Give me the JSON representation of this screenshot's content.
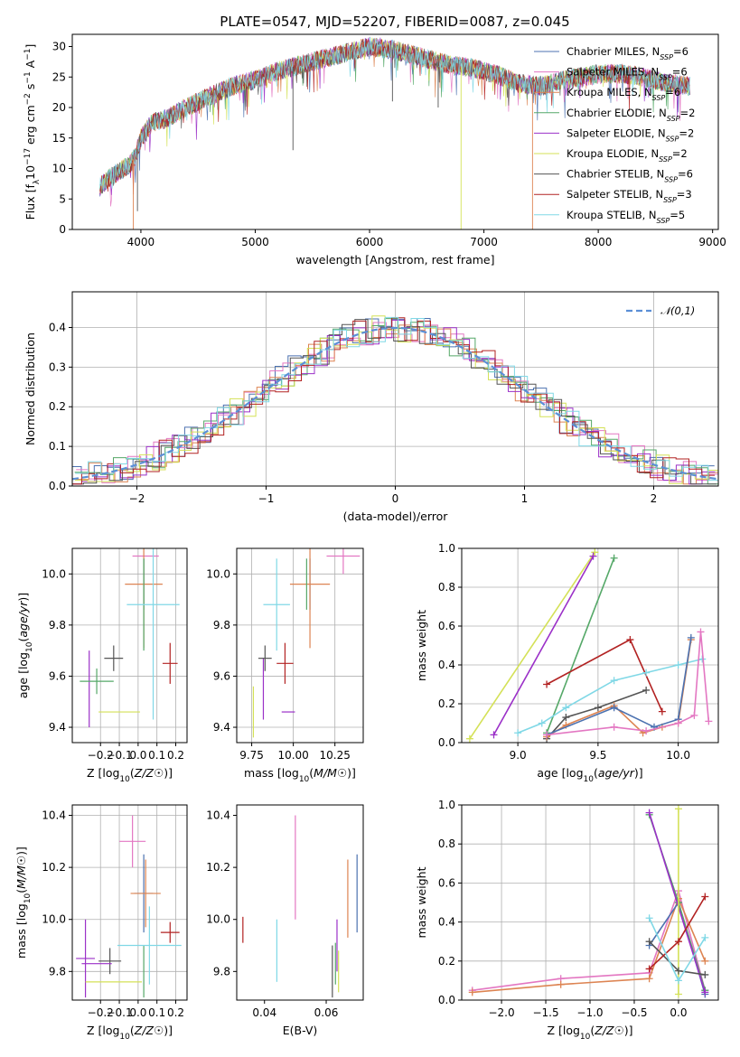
{
  "figure": {
    "title": "PLATE=0547, MJD=52207, FIBERID=0087, z=0.045"
  },
  "series_names": [
    "Chabrier MILES, N_SSP=6",
    "Salpeter MILES, N_SSP=6",
    "Kroupa MILES, N_SSP=6",
    "Chabrier ELODIE, N_SSP=2",
    "Salpeter ELODIE, N_SSP=2",
    "Kroupa ELODIE, N_SSP=2",
    "Chabrier STELIB, N_SSP=6",
    "Salpeter STELIB, N_SSP=3",
    "Kroupa STELIB, N_SSP=5"
  ],
  "colors": [
    "#4c72b0",
    "#e377c2",
    "#dd8452",
    "#55a868",
    "#9b30c8",
    "#d4e157",
    "#555555",
    "#b22222",
    "#80d8e6"
  ],
  "chart_data": [
    {
      "id": "spectrum",
      "type": "line",
      "xlabel": "wavelength [Angstrom, rest frame]",
      "ylabel": "Flux [f_λ 10^-17 erg cm^-2 s^-1 A^-1]",
      "xlim": [
        3400,
        9050
      ],
      "ylim": [
        0,
        32
      ],
      "xticks": [
        4000,
        5000,
        6000,
        7000,
        8000,
        9000
      ],
      "yticks": [
        0,
        5,
        10,
        15,
        20,
        25,
        30
      ],
      "grid": false,
      "legend": "top-right",
      "continuum": {
        "x": [
          3640,
          3700,
          3800,
          3900,
          3950,
          4000,
          4100,
          4200,
          4300,
          4500,
          4800,
          5000,
          5200,
          5500,
          5800,
          6000,
          6200,
          6500,
          6700,
          6900,
          7100,
          7300,
          7500,
          7700,
          8000,
          8200,
          8400,
          8600,
          8800
        ],
        "y": [
          7,
          8,
          9.5,
          10.5,
          12,
          15,
          17.5,
          18,
          19,
          21,
          23.5,
          24.5,
          26,
          27.5,
          29,
          30,
          29.5,
          28,
          27,
          26.5,
          25.5,
          24,
          23.5,
          24.5,
          25.5,
          25.5,
          25,
          24,
          23.5
        ]
      },
      "dips": [
        {
          "x": 3934,
          "y": 0
        },
        {
          "x": 3970,
          "y": 3
        },
        {
          "x": 5330,
          "y": 13
        },
        {
          "x": 6800,
          "y": 0
        },
        {
          "x": 7425,
          "y": 0
        },
        {
          "x": 6200,
          "y": 21
        },
        {
          "x": 6600,
          "y": 20
        }
      ]
    },
    {
      "id": "residuals",
      "type": "histogram",
      "xlabel": "(data-model)/error",
      "ylabel": "Normed distribution",
      "xlim": [
        -2.5,
        2.5
      ],
      "ylim": [
        0,
        0.49
      ],
      "xticks": [
        -2,
        -1,
        0,
        1,
        2
      ],
      "yticks": [
        0,
        0.1,
        0.2,
        0.3,
        0.4
      ],
      "grid": true,
      "legend": "top-right",
      "reference": {
        "name": "𝒩(0,1)",
        "mean": 0,
        "sigma": 1
      },
      "bin_width": 0.1
    },
    {
      "id": "age-z",
      "type": "scatter",
      "xlabel": "Z [log10(Z/Z☉)]",
      "ylabel": "age [log10(age/yr)]",
      "xlim": [
        -0.35,
        0.26
      ],
      "ylim": [
        9.34,
        10.1
      ],
      "xticks": [
        -0.2,
        -0.1,
        0.0,
        0.1,
        0.2
      ],
      "yticks": [
        9.4,
        9.6,
        9.8,
        10.0
      ],
      "grid": true,
      "errorbars": [
        {
          "s": 0,
          "x": 0.03,
          "y": 9.96,
          "xe": 0.0,
          "ye": 0.1
        },
        {
          "s": 1,
          "x": 0.04,
          "y": 10.07,
          "xe": 0.07,
          "ye": 0.0
        },
        {
          "s": 2,
          "x": 0.03,
          "y": 9.96,
          "xe": 0.1,
          "ye": 0.25
        },
        {
          "s": 3,
          "x": 0.03,
          "y": 9.88,
          "xe": 0.0,
          "ye": 0.18
        },
        {
          "s": 4,
          "x": -0.26,
          "y": 9.55,
          "xe": 0.0,
          "ye": 0.15
        },
        {
          "s": 5,
          "x": -0.1,
          "y": 9.46,
          "xe": 0.11,
          "ye": 0.0
        },
        {
          "s": 6,
          "x": -0.13,
          "y": 9.67,
          "xe": 0.05,
          "ye": 0.05
        },
        {
          "s": 7,
          "x": 0.17,
          "y": 9.65,
          "xe": 0.04,
          "ye": 0.08
        },
        {
          "s": 8,
          "x": 0.08,
          "y": 9.88,
          "xe": 0.14,
          "ye": 0.45
        },
        {
          "s": 3,
          "x": -0.22,
          "y": 9.58,
          "xe": 0.09,
          "ye": 0.05
        }
      ]
    },
    {
      "id": "age-mass",
      "type": "scatter",
      "xlabel": "mass [log10(M/M☉)]",
      "ylabel": "",
      "xlim": [
        9.66,
        10.42
      ],
      "ylim": [
        9.34,
        10.1
      ],
      "xticks": [
        9.75,
        10.0,
        10.25
      ],
      "yticks": [
        9.4,
        9.6,
        9.8,
        10.0
      ],
      "grid": true,
      "errorbars": [
        {
          "s": 0,
          "x": 10.1,
          "y": 9.96,
          "xe": 0.0,
          "ye": 0.1
        },
        {
          "s": 1,
          "x": 10.3,
          "y": 10.07,
          "xe": 0.1,
          "ye": 0.07
        },
        {
          "s": 2,
          "x": 10.1,
          "y": 9.96,
          "xe": 0.12,
          "ye": 0.25
        },
        {
          "s": 3,
          "x": 10.08,
          "y": 9.96,
          "xe": 0.0,
          "ye": 0.1
        },
        {
          "s": 4,
          "x": 9.82,
          "y": 9.55,
          "xe": 0.0,
          "ye": 0.12
        },
        {
          "s": 5,
          "x": 9.76,
          "y": 9.46,
          "xe": 0.0,
          "ye": 0.1
        },
        {
          "s": 6,
          "x": 9.83,
          "y": 9.67,
          "xe": 0.04,
          "ye": 0.05
        },
        {
          "s": 7,
          "x": 9.95,
          "y": 9.65,
          "xe": 0.05,
          "ye": 0.08
        },
        {
          "s": 8,
          "x": 9.9,
          "y": 9.88,
          "xe": 0.08,
          "ye": 0.18
        },
        {
          "s": 4,
          "x": 9.97,
          "y": 9.46,
          "xe": 0.04,
          "ye": 0.0
        }
      ]
    },
    {
      "id": "mw-age",
      "type": "line",
      "xlabel": "age [log10(age/yr)]",
      "ylabel": "mass weight",
      "xlim": [
        8.65,
        10.25
      ],
      "ylim": [
        0,
        1
      ],
      "xticks": [
        9.0,
        9.5,
        10.0
      ],
      "yticks": [
        0.0,
        0.2,
        0.4,
        0.6,
        0.8,
        1.0
      ],
      "grid": true,
      "series": [
        {
          "s": 5,
          "x": [
            8.7,
            9.48
          ],
          "y": [
            0.02,
            0.98
          ]
        },
        {
          "s": 4,
          "x": [
            8.85,
            9.47
          ],
          "y": [
            0.04,
            0.96
          ]
        },
        {
          "s": 3,
          "x": [
            9.18,
            9.6
          ],
          "y": [
            0.05,
            0.95
          ]
        },
        {
          "s": 7,
          "x": [
            9.18,
            9.7,
            9.9
          ],
          "y": [
            0.3,
            0.53,
            0.16
          ]
        },
        {
          "s": 8,
          "x": [
            9.0,
            9.15,
            9.3,
            9.6,
            9.8,
            10.0,
            10.15
          ],
          "y": [
            0.05,
            0.1,
            0.18,
            0.32,
            0.36,
            0.4,
            0.43
          ]
        },
        {
          "s": 6,
          "x": [
            9.18,
            9.3,
            9.5,
            9.8
          ],
          "y": [
            0.02,
            0.13,
            0.18,
            0.27
          ]
        },
        {
          "s": 2,
          "x": [
            9.18,
            9.3,
            9.6,
            9.78,
            9.9,
            10.0,
            10.08
          ],
          "y": [
            0.03,
            0.09,
            0.19,
            0.05,
            0.08,
            0.1,
            0.53
          ]
        },
        {
          "s": 0,
          "x": [
            9.18,
            9.6,
            9.85,
            10.0,
            10.08
          ],
          "y": [
            0.04,
            0.18,
            0.08,
            0.12,
            0.54
          ]
        },
        {
          "s": 1,
          "x": [
            9.18,
            9.6,
            9.8,
            10.0,
            10.1,
            10.14,
            10.19
          ],
          "y": [
            0.04,
            0.08,
            0.06,
            0.1,
            0.14,
            0.57,
            0.11
          ]
        }
      ]
    },
    {
      "id": "mass-z",
      "type": "scatter",
      "xlabel": "Z [log10(Z/Z☉)]",
      "ylabel": "mass [log10(M/M☉)]",
      "xlim": [
        -0.35,
        0.26
      ],
      "ylim": [
        9.69,
        10.44
      ],
      "xticks": [
        -0.2,
        -0.1,
        0.0,
        0.1,
        0.2
      ],
      "yticks": [
        9.8,
        10.0,
        10.2,
        10.4
      ],
      "grid": true,
      "errorbars": [
        {
          "s": 0,
          "x": 0.03,
          "y": 10.1,
          "xe": 0.05,
          "ye": 0.15
        },
        {
          "s": 1,
          "x": -0.03,
          "y": 10.3,
          "xe": 0.07,
          "ye": 0.1
        },
        {
          "s": 2,
          "x": 0.04,
          "y": 10.1,
          "xe": 0.08,
          "ye": 0.13
        },
        {
          "s": 3,
          "x": 0.03,
          "y": 9.8,
          "xe": 0.0,
          "ye": 0.1
        },
        {
          "s": 4,
          "x": -0.28,
          "y": 9.85,
          "xe": 0.05,
          "ye": 0.15
        },
        {
          "s": 5,
          "x": -0.13,
          "y": 9.76,
          "xe": 0.15,
          "ye": 0.0
        },
        {
          "s": 6,
          "x": -0.15,
          "y": 9.84,
          "xe": 0.06,
          "ye": 0.05
        },
        {
          "s": 7,
          "x": 0.17,
          "y": 9.95,
          "xe": 0.05,
          "ye": 0.04
        },
        {
          "s": 8,
          "x": 0.06,
          "y": 9.9,
          "xe": 0.17,
          "ye": 0.15
        },
        {
          "s": 4,
          "x": -0.22,
          "y": 9.83,
          "xe": 0.08,
          "ye": 0.0
        }
      ]
    },
    {
      "id": "mass-ebv",
      "type": "scatter",
      "xlabel": "E(B-V)",
      "ylabel": "",
      "xlim": [
        0.031,
        0.072
      ],
      "ylim": [
        9.69,
        10.44
      ],
      "xticks": [
        0.04,
        0.06
      ],
      "yticks": [
        9.8,
        10.0,
        10.2,
        10.4
      ],
      "grid": false,
      "errorbars": [
        {
          "s": 7,
          "x": 0.033,
          "y": 9.96,
          "xe": 0,
          "ye": 0.05
        },
        {
          "s": 8,
          "x": 0.044,
          "y": 9.88,
          "xe": 0,
          "ye": 0.12
        },
        {
          "s": 1,
          "x": 0.05,
          "y": 10.2,
          "xe": 0,
          "ye": 0.2
        },
        {
          "s": 6,
          "x": 0.062,
          "y": 9.8,
          "xe": 0,
          "ye": 0.1
        },
        {
          "s": 3,
          "x": 0.063,
          "y": 9.83,
          "xe": 0,
          "ye": 0.08
        },
        {
          "s": 5,
          "x": 0.064,
          "y": 9.8,
          "xe": 0,
          "ye": 0.08
        },
        {
          "s": 4,
          "x": 0.0635,
          "y": 9.9,
          "xe": 0,
          "ye": 0.1
        },
        {
          "s": 2,
          "x": 0.067,
          "y": 10.08,
          "xe": 0,
          "ye": 0.15
        },
        {
          "s": 0,
          "x": 0.07,
          "y": 10.1,
          "xe": 0,
          "ye": 0.15
        }
      ]
    },
    {
      "id": "mw-z",
      "type": "line",
      "xlabel": "Z [log10(Z/Z☉)]",
      "ylabel": "mass weight",
      "xlim": [
        -2.45,
        0.45
      ],
      "ylim": [
        0,
        1
      ],
      "xticks": [
        -2.0,
        -1.5,
        -1.0,
        -0.5,
        0.0
      ],
      "yticks": [
        0.0,
        0.2,
        0.4,
        0.6,
        0.8,
        1.0
      ],
      "grid": true,
      "series": [
        {
          "s": 1,
          "x": [
            -2.33,
            -1.33,
            -0.33,
            0.0,
            0.3
          ],
          "y": [
            0.05,
            0.11,
            0.14,
            0.56,
            0.05
          ]
        },
        {
          "s": 2,
          "x": [
            -2.33,
            -1.33,
            -0.33,
            0.0,
            0.3
          ],
          "y": [
            0.04,
            0.08,
            0.11,
            0.52,
            0.2
          ]
        },
        {
          "s": 0,
          "x": [
            -0.33,
            0.0,
            0.3
          ],
          "y": [
            0.28,
            0.5,
            0.03
          ]
        },
        {
          "s": 3,
          "x": [
            -0.33,
            0.0,
            0.3
          ],
          "y": [
            0.95,
            0.5,
            0.05
          ]
        },
        {
          "s": 4,
          "x": [
            -0.33,
            0.3
          ],
          "y": [
            0.96,
            0.04
          ]
        },
        {
          "s": 5,
          "x": [
            0.0,
            0.0
          ],
          "y": [
            0.98,
            0.03
          ]
        },
        {
          "s": 6,
          "x": [
            -0.33,
            0.0,
            0.3
          ],
          "y": [
            0.3,
            0.15,
            0.13
          ]
        },
        {
          "s": 7,
          "x": [
            -0.33,
            0.0,
            0.3
          ],
          "y": [
            0.16,
            0.3,
            0.53
          ]
        },
        {
          "s": 8,
          "x": [
            -0.33,
            0.0,
            0.3
          ],
          "y": [
            0.42,
            0.1,
            0.32
          ]
        }
      ]
    }
  ]
}
